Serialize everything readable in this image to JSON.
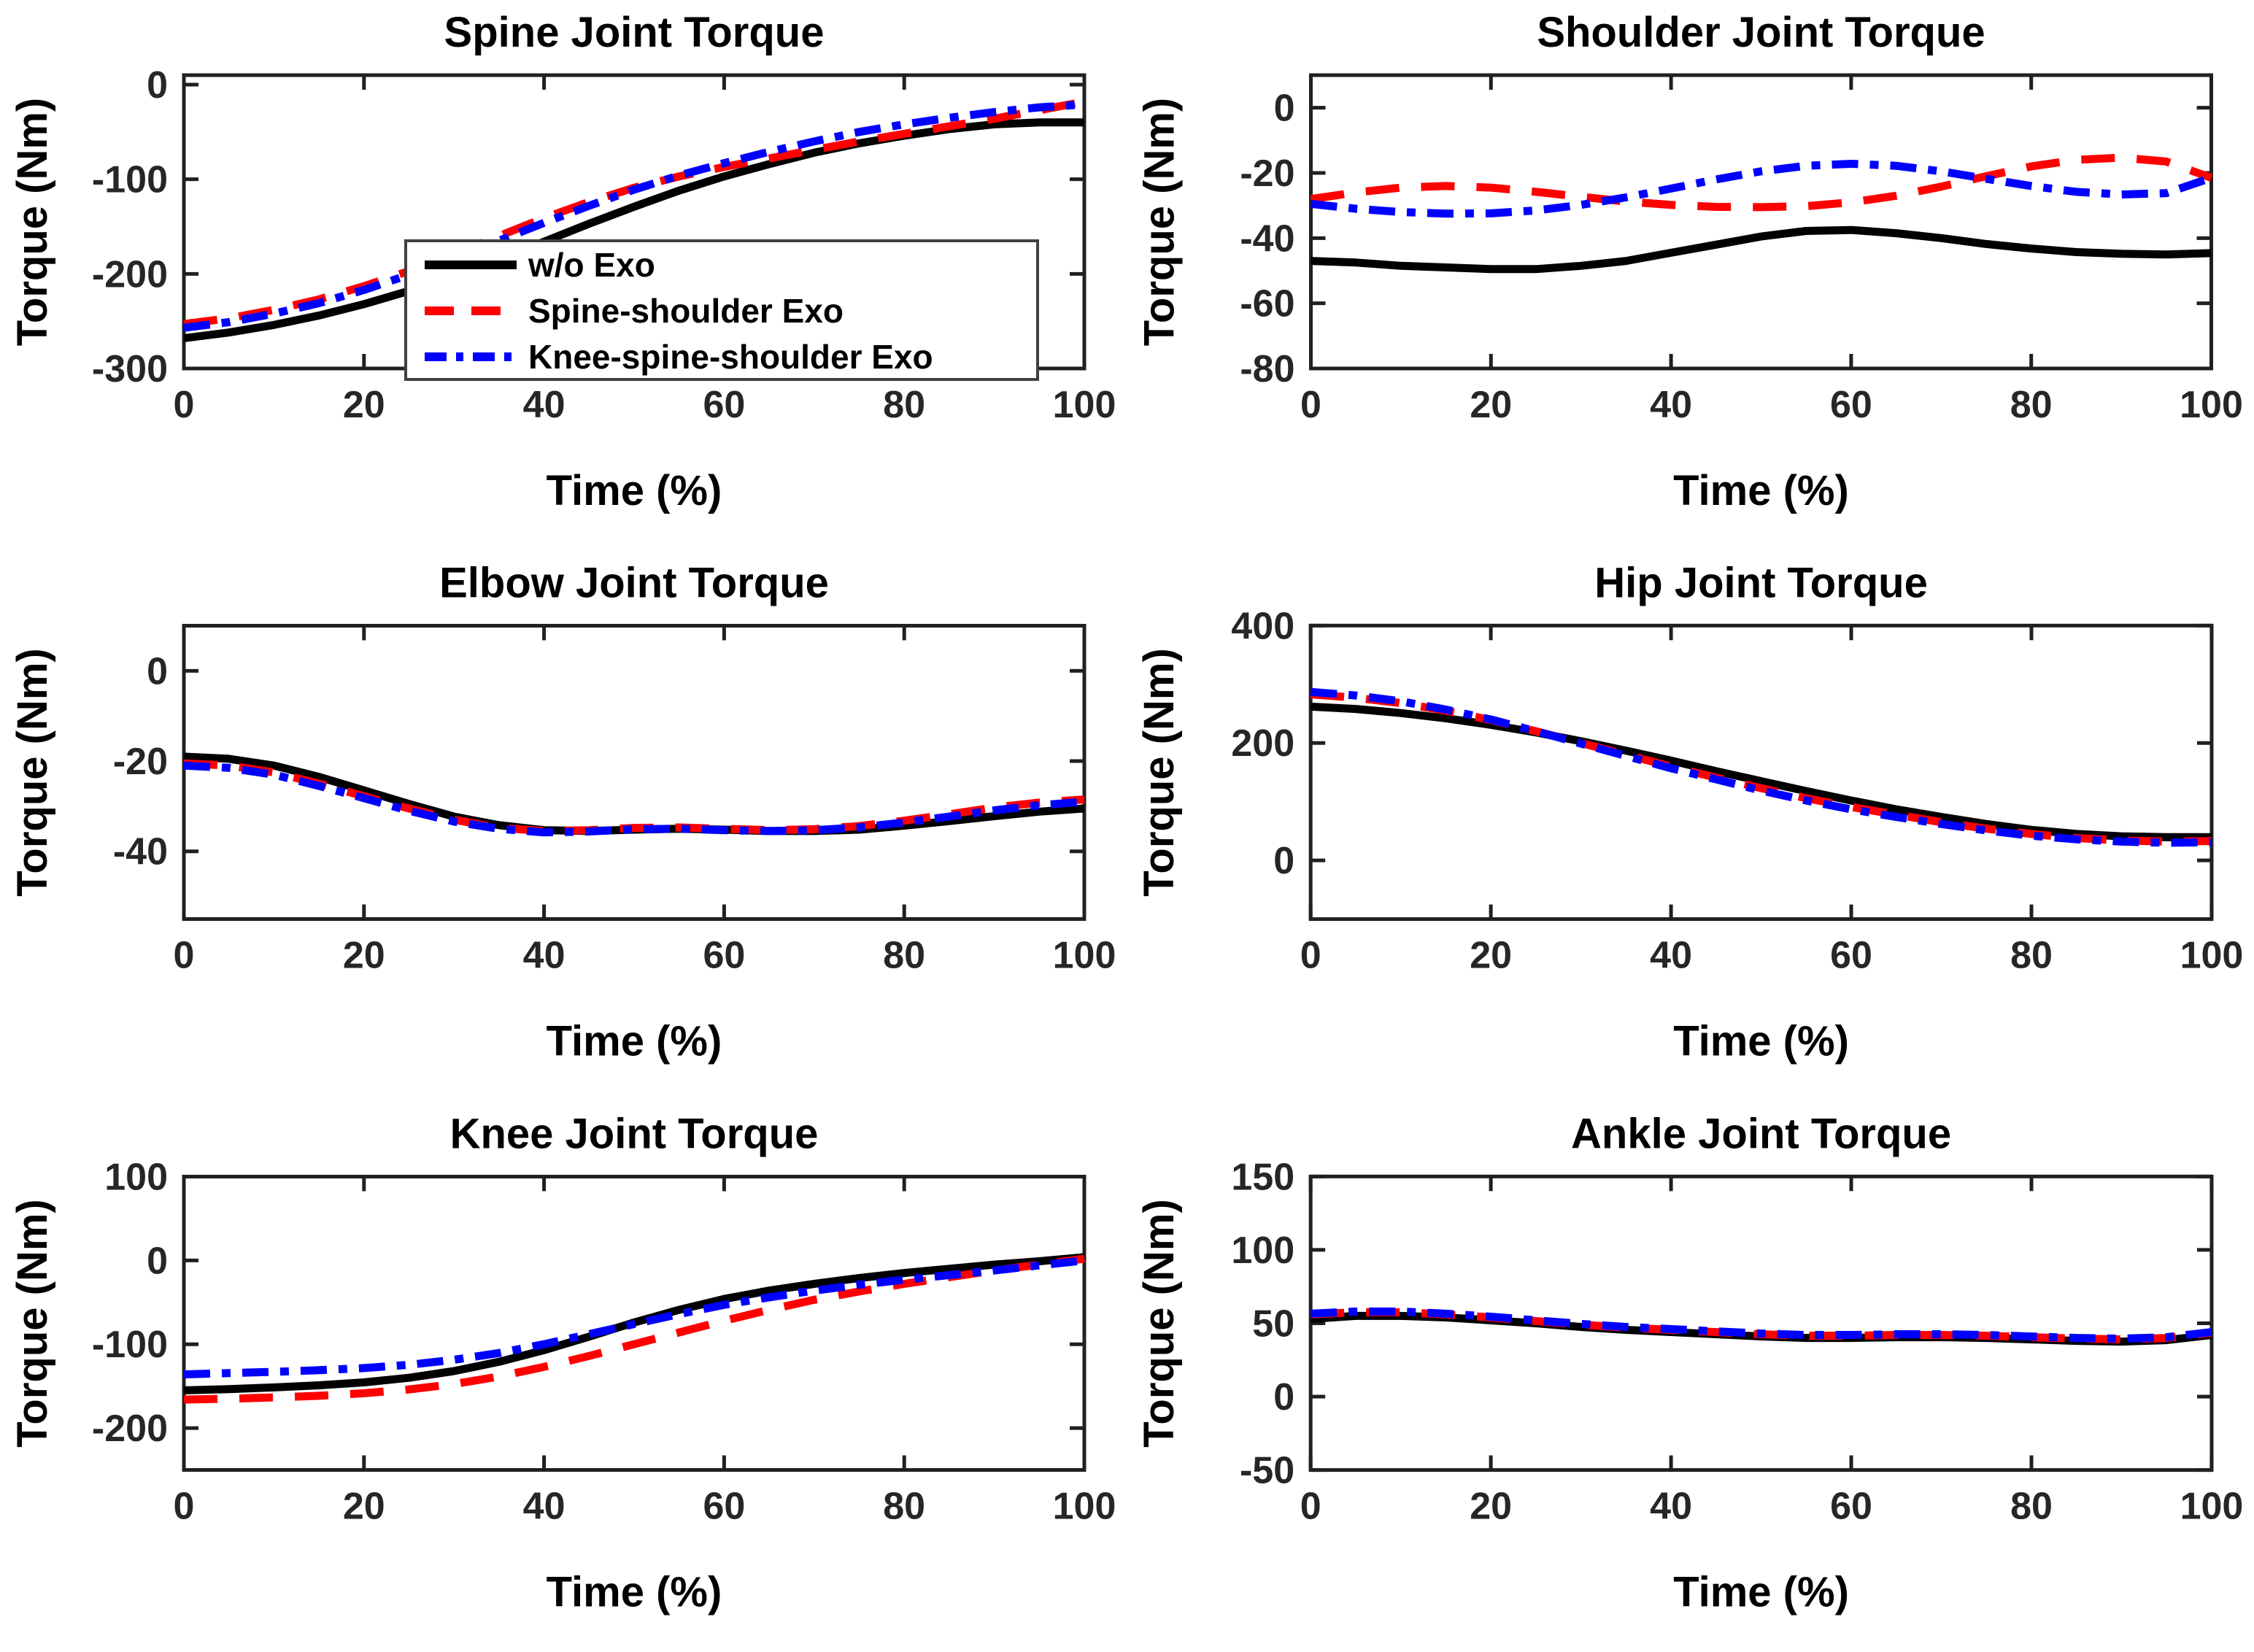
{
  "figure": {
    "background": "#ffffff",
    "axis_color": "#202020",
    "tick_label_color": "#262626",
    "text_color": "#000000"
  },
  "legend": {
    "location": "inside-spine-panel-lower-right",
    "entries": [
      {
        "label": "w/o Exo",
        "color": "#000000",
        "style": "solid"
      },
      {
        "label": "Spine-shoulder Exo",
        "color": "#ff0000",
        "style": "dashed"
      },
      {
        "label": "Knee-spine-shoulder Exo",
        "color": "#0000ff",
        "style": "dashdot"
      }
    ]
  },
  "chart_data": [
    {
      "type": "line",
      "key": "spine",
      "title": "Spine Joint Torque",
      "xlabel": "Time (%)",
      "ylabel": "Torque (Nm)",
      "xlim": [
        0,
        100
      ],
      "xticks": [
        0,
        20,
        40,
        60,
        80,
        100
      ],
      "ylim": [
        -300,
        10
      ],
      "yticks": [
        0,
        -100,
        -200,
        -300
      ],
      "grid": false,
      "show_legend": true,
      "x": [
        0,
        5,
        10,
        15,
        20,
        25,
        30,
        35,
        40,
        45,
        50,
        55,
        60,
        65,
        70,
        75,
        80,
        85,
        90,
        95,
        100
      ],
      "series": [
        {
          "name": "w/o Exo",
          "values": [
            -268,
            -262,
            -254,
            -244,
            -232,
            -218,
            -202,
            -185,
            -166,
            -147,
            -129,
            -112,
            -97,
            -84,
            -72,
            -62,
            -54,
            -47,
            -42,
            -40,
            -40
          ]
        },
        {
          "name": "Spine-shoulder Exo",
          "values": [
            -253,
            -247,
            -238,
            -227,
            -213,
            -197,
            -179,
            -160,
            -141,
            -124,
            -109,
            -97,
            -87,
            -78,
            -69,
            -60,
            -52,
            -44,
            -36,
            -27,
            -18
          ]
        },
        {
          "name": "Knee-spine-shoulder Exo",
          "values": [
            -257,
            -251,
            -242,
            -231,
            -217,
            -201,
            -184,
            -165,
            -146,
            -128,
            -111,
            -96,
            -83,
            -71,
            -60,
            -50,
            -42,
            -35,
            -29,
            -24,
            -21
          ]
        }
      ]
    },
    {
      "type": "line",
      "key": "shoulder",
      "title": "Shoulder Joint Torque",
      "xlabel": "Time (%)",
      "ylabel": "Torque (Nm)",
      "xlim": [
        0,
        100
      ],
      "xticks": [
        0,
        20,
        40,
        60,
        80,
        100
      ],
      "ylim": [
        -80,
        10
      ],
      "yticks": [
        0,
        -20,
        -40,
        -60,
        -80
      ],
      "grid": false,
      "show_legend": false,
      "x": [
        0,
        5,
        10,
        15,
        20,
        25,
        30,
        35,
        40,
        45,
        50,
        55,
        60,
        65,
        70,
        75,
        80,
        85,
        90,
        95,
        100
      ],
      "series": [
        {
          "name": "w/o Exo",
          "values": [
            -47,
            -47.5,
            -48.5,
            -49,
            -49.5,
            -49.5,
            -48.5,
            -47,
            -44.5,
            -42,
            -39.5,
            -37.8,
            -37.5,
            -38.5,
            -40,
            -41.8,
            -43.2,
            -44.3,
            -44.8,
            -45,
            -44.6
          ]
        },
        {
          "name": "Spine-shoulder Exo",
          "values": [
            -28,
            -26,
            -24.5,
            -24,
            -24.5,
            -25.8,
            -27.3,
            -28.8,
            -29.8,
            -30.4,
            -30.5,
            -30.2,
            -29,
            -27,
            -24.2,
            -21,
            -18,
            -16,
            -15.3,
            -16.5,
            -21.5
          ]
        },
        {
          "name": "Knee-spine-shoulder Exo",
          "values": [
            -29.5,
            -31,
            -32,
            -32.5,
            -32.4,
            -31.5,
            -29.8,
            -27.5,
            -24.8,
            -22,
            -19.5,
            -17.8,
            -17.2,
            -17.8,
            -19.5,
            -21.8,
            -24,
            -25.8,
            -26.6,
            -26.2,
            -21.5
          ]
        }
      ]
    },
    {
      "type": "line",
      "key": "elbow",
      "title": "Elbow Joint Torque",
      "xlabel": "Time (%)",
      "ylabel": "Torque (Nm)",
      "xlim": [
        0,
        100
      ],
      "xticks": [
        0,
        20,
        40,
        60,
        80,
        100
      ],
      "ylim": [
        -55,
        10
      ],
      "yticks": [
        0,
        -20,
        -40
      ],
      "grid": false,
      "show_legend": false,
      "x": [
        0,
        5,
        10,
        15,
        20,
        25,
        30,
        35,
        40,
        45,
        50,
        55,
        60,
        65,
        70,
        75,
        80,
        85,
        90,
        95,
        100
      ],
      "series": [
        {
          "name": "w/o Exo",
          "values": [
            -19,
            -19.5,
            -21,
            -23.5,
            -26.5,
            -29.5,
            -32.3,
            -34.2,
            -35.3,
            -35.5,
            -35.2,
            -35,
            -35.2,
            -35.5,
            -35.5,
            -35.2,
            -34.3,
            -33.3,
            -32.2,
            -31.2,
            -30.5
          ]
        },
        {
          "name": "Spine-shoulder Exo",
          "values": [
            -20.5,
            -21,
            -22.5,
            -25,
            -27.8,
            -30.5,
            -33,
            -34.8,
            -35.5,
            -35.3,
            -34.8,
            -34.7,
            -35,
            -35.3,
            -35.1,
            -34.4,
            -33.2,
            -31.8,
            -30.3,
            -29.2,
            -28.5
          ]
        },
        {
          "name": "Knee-spine-shoulder Exo",
          "values": [
            -21,
            -21.5,
            -23,
            -25.5,
            -28.2,
            -31,
            -33.4,
            -35,
            -35.8,
            -35.6,
            -35.1,
            -35,
            -35.3,
            -35.5,
            -35.3,
            -34.7,
            -33.6,
            -32.3,
            -30.9,
            -29.8,
            -29
          ]
        }
      ]
    },
    {
      "type": "line",
      "key": "hip",
      "title": "Hip Joint Torque",
      "xlabel": "Time (%)",
      "ylabel": "Torque (Nm)",
      "xlim": [
        0,
        100
      ],
      "xticks": [
        0,
        20,
        40,
        60,
        80,
        100
      ],
      "ylim": [
        -100,
        400
      ],
      "yticks": [
        400,
        200,
        0
      ],
      "grid": false,
      "show_legend": false,
      "x": [
        0,
        5,
        10,
        15,
        20,
        25,
        30,
        35,
        40,
        45,
        50,
        55,
        60,
        65,
        70,
        75,
        80,
        85,
        90,
        95,
        100
      ],
      "series": [
        {
          "name": "w/o Exo",
          "values": [
            262,
            258,
            251,
            242,
            231,
            218,
            203,
            187,
            170,
            152,
            135,
            118,
            102,
            87,
            74,
            62,
            52,
            45,
            41,
            39.5,
            39.5
          ]
        },
        {
          "name": "Spine-shoulder Exo",
          "values": [
            283,
            277,
            268,
            255,
            239,
            220,
            200,
            180,
            160,
            141,
            123,
            106,
            91,
            78,
            65,
            54,
            45,
            38,
            34,
            32,
            33
          ]
        },
        {
          "name": "Knee-spine-shoulder Exo",
          "values": [
            287,
            281,
            271,
            257,
            240,
            220,
            199,
            178,
            157,
            138,
            119,
            102,
            87,
            74,
            62,
            51,
            42,
            36,
            32,
            30,
            31
          ]
        }
      ]
    },
    {
      "type": "line",
      "key": "knee",
      "title": "Knee Joint Torque",
      "xlabel": "Time (%)",
      "ylabel": "Torque (Nm)",
      "xlim": [
        0,
        100
      ],
      "xticks": [
        0,
        20,
        40,
        60,
        80,
        100
      ],
      "ylim": [
        -250,
        100
      ],
      "yticks": [
        100,
        0,
        -100,
        -200
      ],
      "grid": false,
      "show_legend": false,
      "x": [
        0,
        5,
        10,
        15,
        20,
        25,
        30,
        35,
        40,
        45,
        50,
        55,
        60,
        65,
        70,
        75,
        80,
        85,
        90,
        95,
        100
      ],
      "series": [
        {
          "name": "w/o Exo",
          "values": [
            -155,
            -153.5,
            -151.5,
            -149,
            -145.5,
            -140,
            -132,
            -121,
            -107,
            -91,
            -74,
            -59,
            -46,
            -36,
            -28,
            -21,
            -15,
            -10,
            -5,
            -1,
            4
          ]
        },
        {
          "name": "Spine-shoulder Exo",
          "values": [
            -166,
            -165,
            -163.5,
            -161.5,
            -158.5,
            -154,
            -147.5,
            -138.5,
            -127,
            -114,
            -100,
            -86,
            -72,
            -59,
            -47,
            -37,
            -28,
            -20,
            -12,
            -5,
            2
          ]
        },
        {
          "name": "Knee-spine-shoulder Exo",
          "values": [
            -136,
            -134.5,
            -133,
            -131,
            -128.5,
            -124.5,
            -118.5,
            -110.5,
            -100,
            -88,
            -76,
            -64,
            -53,
            -44,
            -36,
            -29,
            -23,
            -17.5,
            -12,
            -6,
            0
          ]
        }
      ]
    },
    {
      "type": "line",
      "key": "ankle",
      "title": "Ankle Joint Torque",
      "xlabel": "Time (%)",
      "ylabel": "Torque (Nm)",
      "xlim": [
        0,
        100
      ],
      "xticks": [
        0,
        20,
        40,
        60,
        80,
        100
      ],
      "ylim": [
        -50,
        150
      ],
      "yticks": [
        150,
        100,
        50,
        0,
        -50
      ],
      "grid": false,
      "show_legend": false,
      "x": [
        0,
        5,
        10,
        15,
        20,
        25,
        30,
        35,
        40,
        45,
        50,
        55,
        60,
        65,
        70,
        75,
        80,
        85,
        90,
        95,
        100
      ],
      "series": [
        {
          "name": "w/o Exo",
          "values": [
            53,
            55,
            55,
            54,
            52,
            50,
            47.5,
            45.5,
            44,
            42.5,
            41,
            40,
            40,
            40.5,
            40.5,
            40,
            39,
            38,
            37.5,
            38.5,
            42
          ]
        },
        {
          "name": "Spine-shoulder Exo",
          "values": [
            56,
            57.5,
            57.5,
            56,
            54,
            51.5,
            49,
            47,
            45.5,
            44,
            42.5,
            41.5,
            41.5,
            42,
            42,
            41.5,
            40.5,
            39.5,
            39,
            40,
            43.5
          ]
        },
        {
          "name": "Knee-spine-shoulder Exo",
          "values": [
            56.5,
            58,
            58,
            56.5,
            54.5,
            52,
            49.5,
            47.5,
            46,
            44.5,
            43,
            42,
            42,
            42.5,
            42.5,
            42,
            41,
            40,
            39.5,
            40.5,
            44
          ]
        }
      ]
    }
  ]
}
